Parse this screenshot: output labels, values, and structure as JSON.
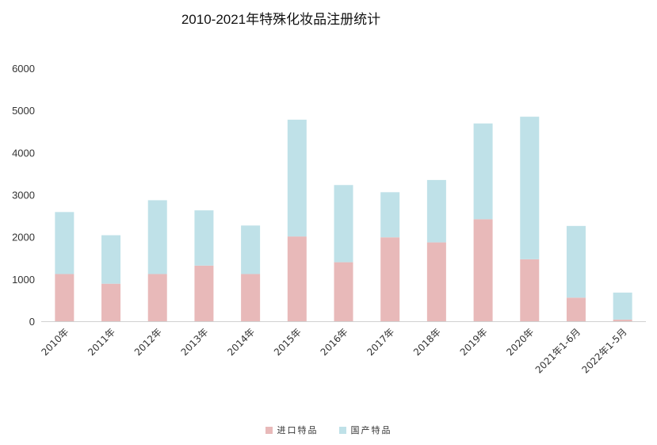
{
  "chart_data": {
    "type": "bar",
    "stacked": true,
    "title": "2010-2021年特殊化妆品注册统计",
    "xlabel": "",
    "ylabel": "",
    "ylim": [
      0,
      6000
    ],
    "yticks": [
      0,
      1000,
      2000,
      3000,
      4000,
      5000,
      6000
    ],
    "grid": false,
    "legend_position": "bottom",
    "categories": [
      "2010年",
      "2011年",
      "2012年",
      "2013年",
      "2014年",
      "2015年",
      "2016年",
      "2017年",
      "2018年",
      "2019年",
      "2020年",
      "2021年1-6月",
      "2022年1-5月"
    ],
    "series": [
      {
        "name": "进口特品",
        "color": "#e8b9b9",
        "values": [
          1120,
          890,
          1120,
          1320,
          1120,
          2010,
          1400,
          1990,
          1870,
          2420,
          1470,
          560,
          40
        ]
      },
      {
        "name": "国产特品",
        "color": "#bfe1e8",
        "values": [
          1470,
          1150,
          1750,
          1310,
          1150,
          2770,
          1830,
          1070,
          1480,
          2270,
          3380,
          1700,
          640
        ]
      }
    ]
  }
}
